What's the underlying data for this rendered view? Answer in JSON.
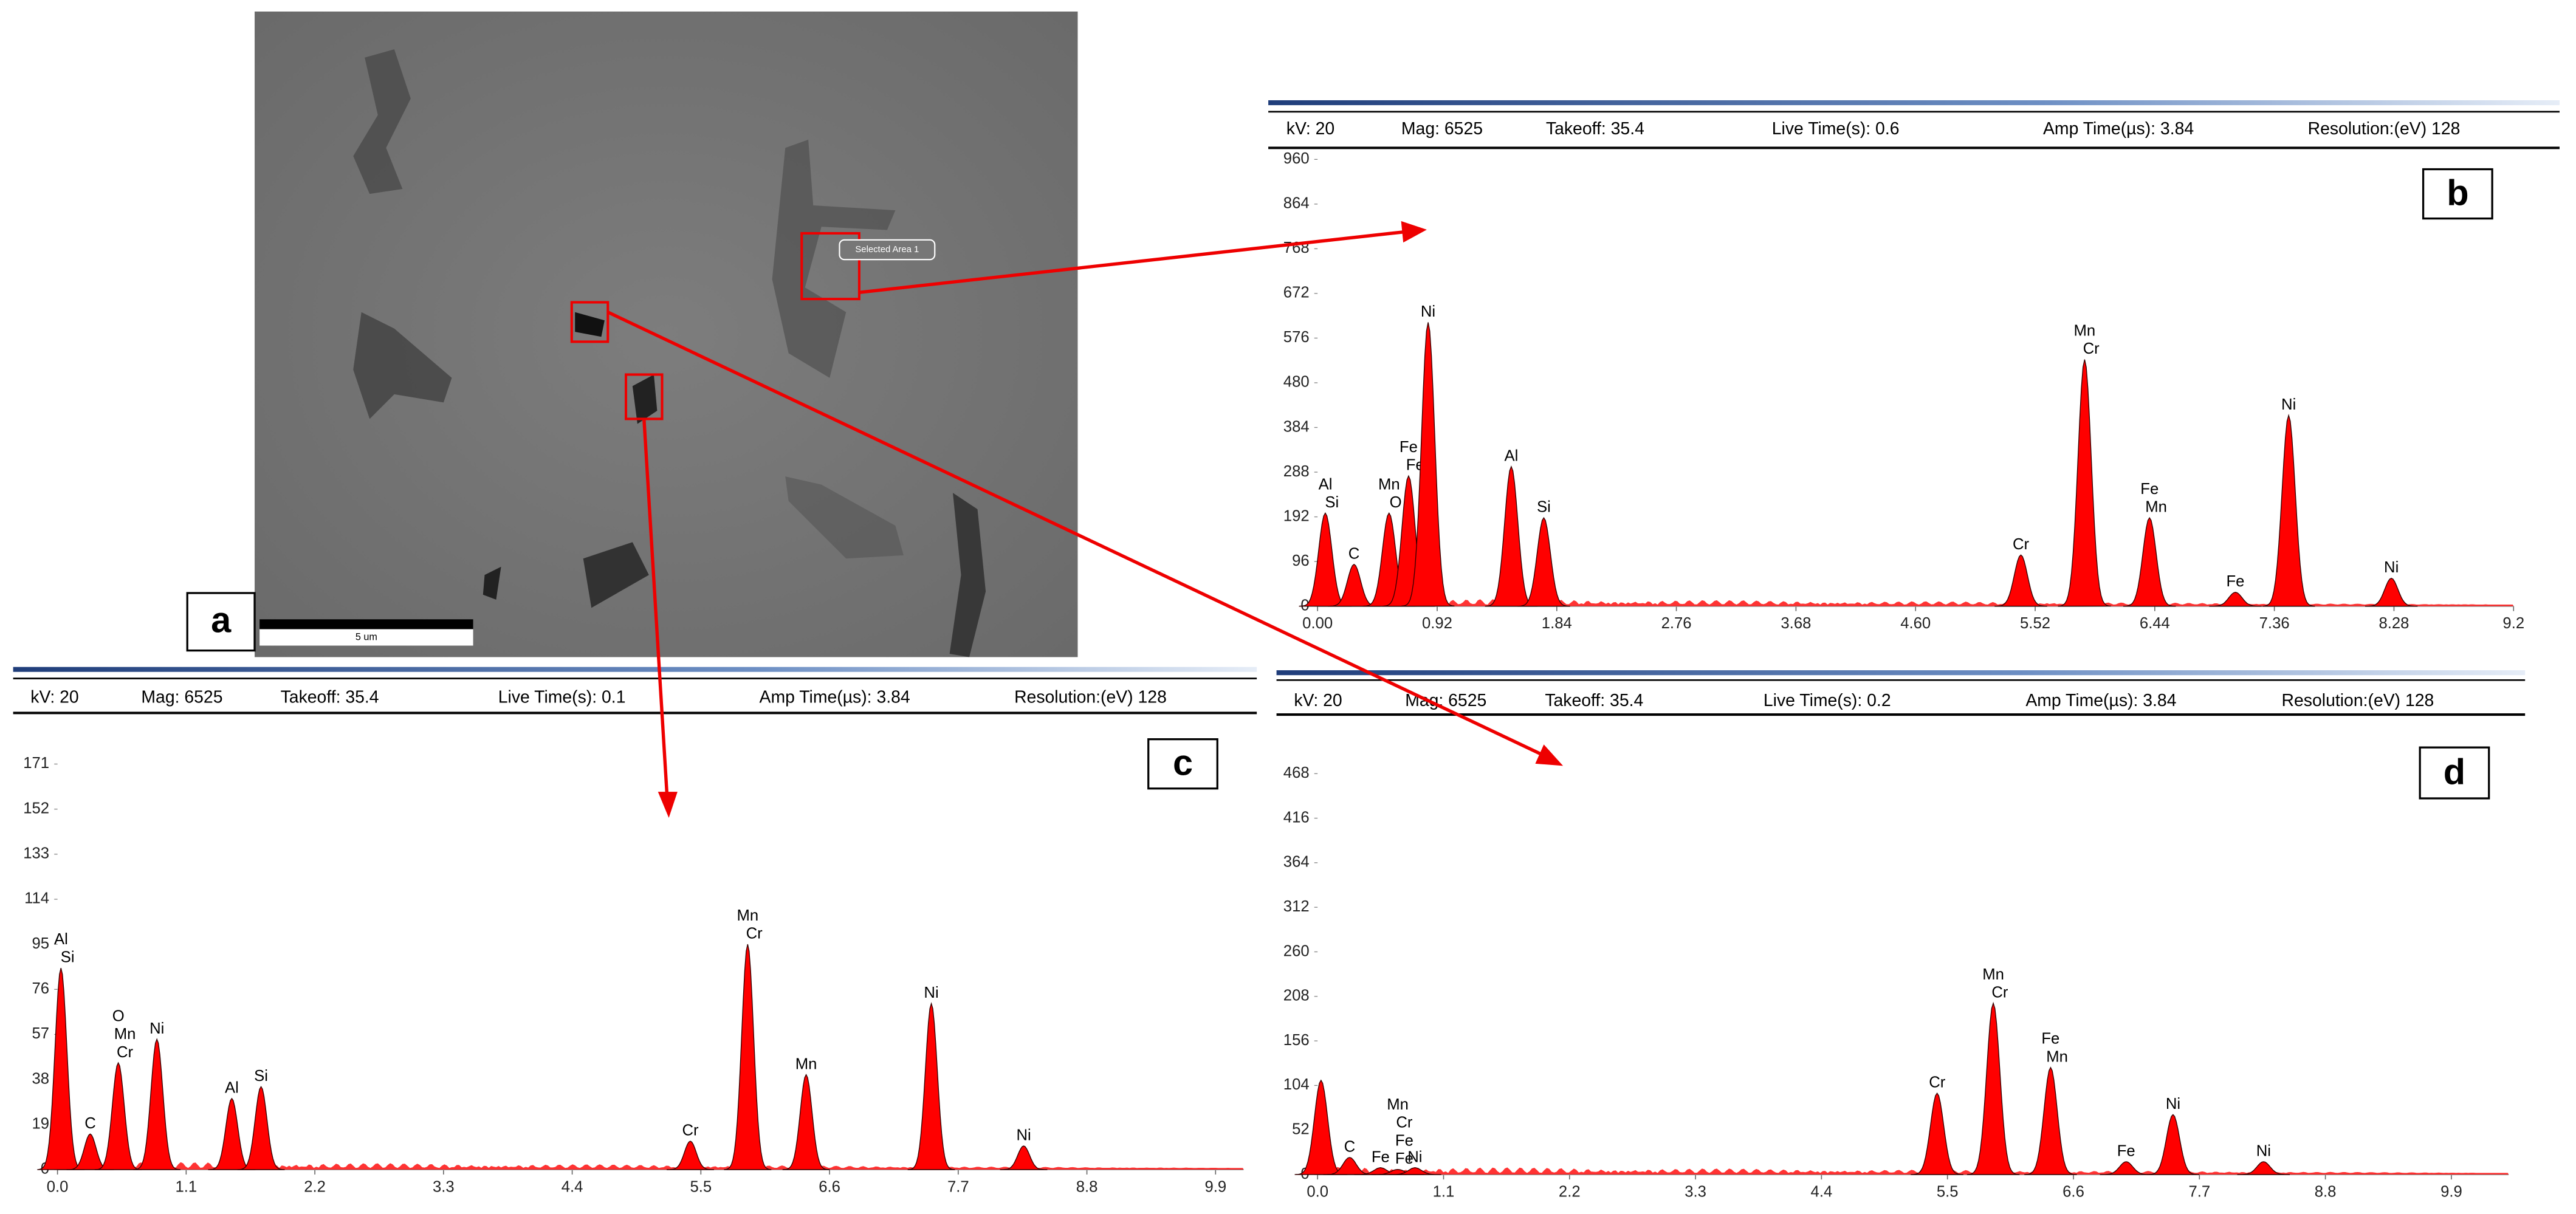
{
  "image": {
    "panel_label": "a",
    "scale_bar": "5 um",
    "selected_area": "Selected Area 1"
  },
  "chart_data": [
    {
      "type": "spectrum",
      "panel_label": "b",
      "color": "#ff0000",
      "info": [
        "kV: 20",
        "Mag: 6525",
        "Takeoff: 35.4",
        "Live Time(s): 0.6",
        "Amp Time(µs): 3.84",
        "Resolution:(eV) 128"
      ],
      "xlim": [
        0,
        9.2
      ],
      "ylim": [
        0,
        960
      ],
      "xticks": [
        {
          "value": 0,
          "label": "0.00"
        },
        0.92,
        1.84,
        2.76,
        3.68,
        {
          "value": 4.6,
          "label": "4.60"
        },
        5.52,
        6.44,
        7.36,
        8.28,
        9.2
      ],
      "yticks": [
        0,
        96,
        192,
        288,
        384,
        480,
        576,
        672,
        768,
        864,
        960
      ],
      "peaks": {
        "x": [
          0.06,
          0.28,
          0.55,
          0.7,
          0.85,
          1.49,
          1.74,
          5.41,
          5.9,
          6.4,
          7.06,
          7.47,
          8.26
        ],
        "values": [
          200,
          90,
          200,
          280,
          610,
          300,
          190,
          110,
          530,
          190,
          30,
          410,
          60
        ],
        "labels": [
          [
            "Al",
            "Si"
          ],
          [
            "C"
          ],
          [
            "Mn",
            "O"
          ],
          [
            "Fe",
            "Fe"
          ],
          [
            "Ni"
          ],
          [
            "Al"
          ],
          [
            "Si"
          ],
          [
            "Cr"
          ],
          [
            "Mn",
            "Cr"
          ],
          [
            "Fe",
            "Mn"
          ],
          [
            "Fe"
          ],
          [
            "Ni"
          ],
          [
            "Ni"
          ]
        ]
      }
    },
    {
      "type": "spectrum",
      "panel_label": "c",
      "color": "#ff0000",
      "info": [
        "kV: 20",
        "Mag: 6525",
        "Takeoff: 35.4",
        "Live Time(s): 0.1",
        "Amp Time(µs): 3.84",
        "Resolution:(eV) 128"
      ],
      "xlim": [
        0,
        10.14
      ],
      "ylim": [
        0,
        178
      ],
      "xticks": [
        {
          "value": 0,
          "label": "0.0"
        },
        1.1,
        2.2,
        3.3,
        4.4,
        5.5,
        6.6,
        7.7,
        8.8,
        9.9
      ],
      "yticks": [
        0,
        19,
        38,
        57,
        76,
        95,
        114,
        133,
        152,
        171
      ],
      "peaks": {
        "x": [
          0.03,
          0.28,
          0.52,
          0.85,
          1.49,
          1.74,
          5.41,
          5.9,
          6.4,
          7.47,
          8.26
        ],
        "values": [
          85,
          15,
          45,
          55,
          30,
          35,
          12,
          95,
          40,
          70,
          10
        ],
        "labels": [
          [
            "Al",
            "Si"
          ],
          [
            "C"
          ],
          [
            "O",
            "Mn",
            "Cr"
          ],
          [
            "Ni"
          ],
          [
            "Al"
          ],
          [
            "Si"
          ],
          [
            "Cr"
          ],
          [
            "Mn",
            "Cr"
          ],
          [
            "Mn"
          ],
          [
            "Ni"
          ],
          [
            "Ni"
          ]
        ]
      }
    },
    {
      "type": "spectrum",
      "panel_label": "d",
      "color": "#ff0000",
      "info": [
        "kV: 20",
        "Mag: 6525",
        "Takeoff: 35.4",
        "Live Time(s): 0.2",
        "Amp Time(µs): 3.84",
        "Resolution:(eV) 128"
      ],
      "xlim": [
        0,
        10.4
      ],
      "ylim": [
        0,
        489
      ],
      "xticks": [
        {
          "value": 0,
          "label": "0.0"
        },
        1.1,
        2.2,
        3.3,
        4.4,
        5.5,
        6.6,
        7.7,
        8.8,
        9.9
      ],
      "yticks": [
        0,
        52,
        104,
        156,
        208,
        260,
        312,
        364,
        416,
        468
      ],
      "peaks": {
        "x": [
          0.03,
          0.28,
          0.55,
          0.7,
          0.85,
          5.41,
          5.9,
          6.4,
          7.06,
          7.47,
          8.26
        ],
        "values": [
          110,
          20,
          8,
          6,
          8,
          95,
          200,
          125,
          15,
          70,
          15
        ],
        "labels": [
          [],
          [
            "C"
          ],
          [
            "Fe"
          ],
          [
            "Mn",
            "Cr",
            "Fe",
            "Fe"
          ],
          [
            "Ni"
          ],
          [
            "Cr"
          ],
          [
            "Mn",
            "Cr"
          ],
          [
            "Fe",
            "Mn"
          ],
          [
            "Fe"
          ],
          [
            "Ni"
          ],
          [
            "Ni"
          ]
        ]
      }
    }
  ]
}
